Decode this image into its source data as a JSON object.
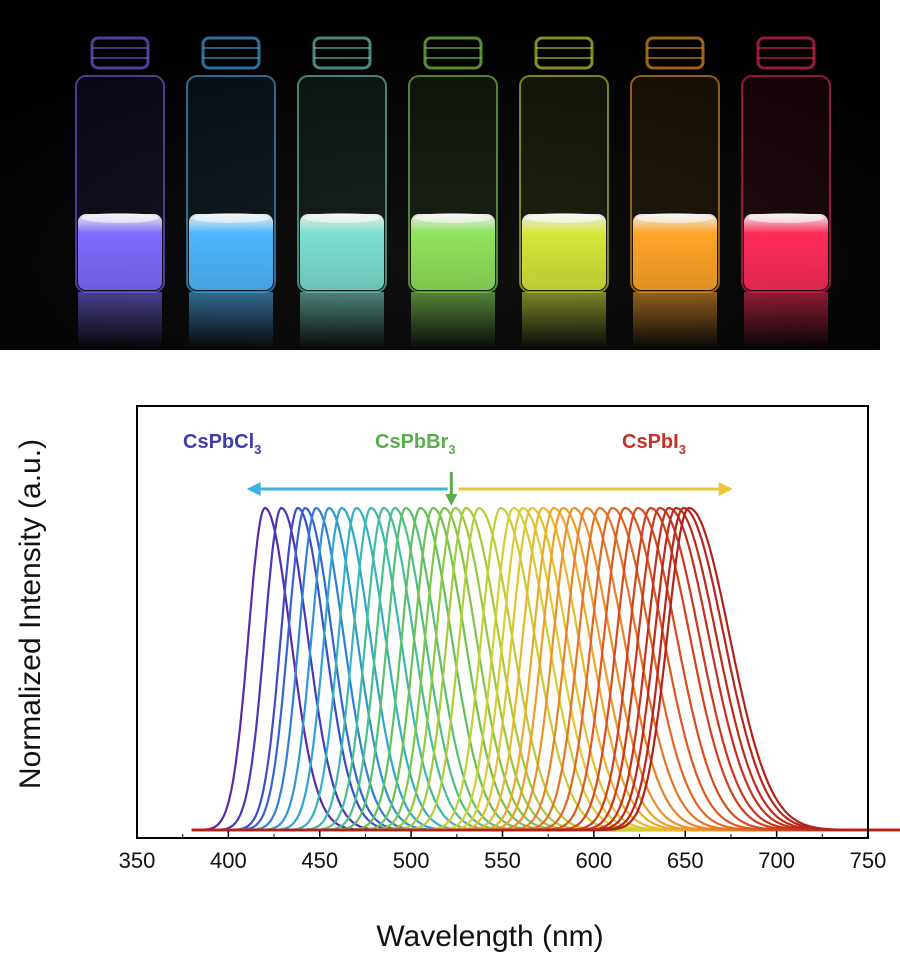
{
  "photo": {
    "vial_colors": [
      "#7e6cff",
      "#4fb8ff",
      "#7de0d0",
      "#8fe35a",
      "#d6e83a",
      "#ffa628",
      "#ff2c5a"
    ]
  },
  "chart_data": {
    "type": "line",
    "xlabel": "Wavelength (nm)",
    "ylabel": "Normalized Intensity (a.u.)",
    "xlim": [
      350,
      750
    ],
    "xticks": [
      350,
      400,
      450,
      500,
      550,
      600,
      650,
      700,
      750
    ],
    "ylim": [
      0,
      1.05
    ],
    "y_ticks_shown": false,
    "grid": false,
    "series_x_range": [
      380,
      870
    ],
    "peak_wavelengths": [
      420,
      429,
      438,
      442,
      448,
      455,
      462,
      470,
      478,
      485,
      491,
      497,
      505,
      512,
      518,
      524,
      530,
      537,
      549,
      556,
      561,
      566,
      572,
      578,
      583,
      589,
      596,
      603,
      610,
      617,
      624,
      631,
      636,
      641,
      645,
      649,
      652
    ],
    "peak_colors": [
      "#5b2aa8",
      "#4a36b8",
      "#3d4cc8",
      "#3464d2",
      "#2f7fd8",
      "#2e94d6",
      "#2ea4cf",
      "#33b0c2",
      "#3bb8b0",
      "#44bd9c",
      "#4cbf86",
      "#55c170",
      "#5fc15c",
      "#6ec24f",
      "#80c545",
      "#93c83f",
      "#a5cb3b",
      "#b6cd38",
      "#c5cf35",
      "#d2cf33",
      "#dccb31",
      "#e3c22f",
      "#e8b72d",
      "#eaab2b",
      "#eb9e29",
      "#ea9027",
      "#e88226",
      "#e57424",
      "#e16622",
      "#dc5820",
      "#d64b1f",
      "#d0401e",
      "#ca371d",
      "#c4301c",
      "#be2a1c",
      "#b8261c",
      "#b2221c"
    ],
    "annotations": [
      {
        "name": "cspbcl3",
        "text": "CsPbCl",
        "sub": "3",
        "color": "#3b3dab"
      },
      {
        "name": "cspbbr3",
        "text": "CsPbBr",
        "sub": "3",
        "color": "#5aad4e"
      },
      {
        "name": "cspbi3",
        "text": "CsPbI",
        "sub": "3",
        "color": "#c8302a"
      }
    ],
    "arrows": [
      {
        "name": "blue-shift",
        "from": 520,
        "to": 410,
        "color": "#3db3e0"
      },
      {
        "name": "red-shift",
        "from": 526,
        "to": 676,
        "color": "#f0c43a"
      },
      {
        "name": "center",
        "at": 522,
        "color": "#5aad4e"
      }
    ]
  }
}
